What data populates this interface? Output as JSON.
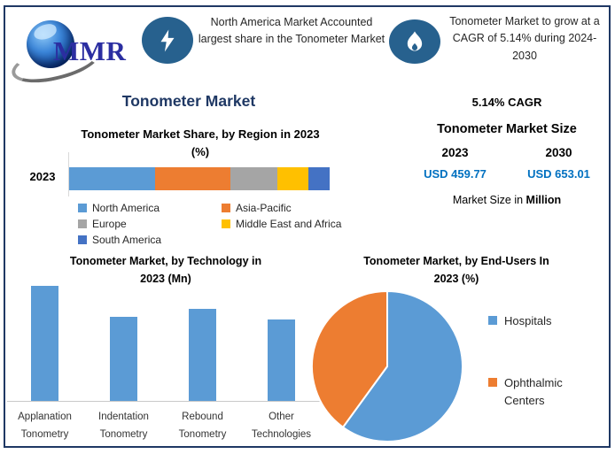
{
  "brand": {
    "logo_text": "MMR"
  },
  "header": {
    "highlight1": "North America Market Accounted largest share in the Tonometer Market",
    "highlight1_icon": "lightning-bolt",
    "highlight2": "Tonometer Market to grow at a CAGR of 5.14% during 2024-2030",
    "highlight2_icon": "flame"
  },
  "main_title": "Tonometer Market",
  "market_size_panel": {
    "cagr": "5.14% CAGR",
    "title": "Tonometer Market Size",
    "year_start": "2023",
    "year_end": "2030",
    "value_start": "USD 459.77",
    "value_end": "USD 653.01",
    "note_prefix": "Market Size in ",
    "note_bold": "Million"
  },
  "colors": {
    "border_navy": "#1F3864",
    "icon_circle_blue": "#27618E",
    "value_blue": "#0070C0",
    "logo_blue": "#2B2EA1"
  },
  "chart_data": [
    {
      "id": "region_share",
      "type": "bar",
      "subtype": "horizontal-stacked",
      "title": "Tonometer Market Share, by Region in 2023 (%)",
      "title_lines": [
        "Tonometer Market Share, by Region in 2023",
        "(%)"
      ],
      "categories": [
        "2023"
      ],
      "series": [
        {
          "name": "North America",
          "color": "#5B9BD5",
          "values": [
            33
          ]
        },
        {
          "name": "Asia-Pacific",
          "color": "#ED7D31",
          "values": [
            29
          ]
        },
        {
          "name": "Europe",
          "color": "#A5A5A5",
          "values": [
            18
          ]
        },
        {
          "name": "Middle East and Africa",
          "color": "#FFC000",
          "values": [
            12
          ]
        },
        {
          "name": "South America",
          "color": "#4472C4",
          "values": [
            8
          ]
        }
      ],
      "xlim": [
        0,
        100
      ],
      "legend_position": "bottom",
      "grid": false,
      "value_labels_shown": false
    },
    {
      "id": "technology",
      "type": "bar",
      "title": "Tonometer Market, by Technology in 2023 (Mn)",
      "title_lines": [
        "Tonometer Market, by Technology in",
        "2023 (Mn)"
      ],
      "categories": [
        "Applanation Tonometry",
        "Indentation Tonometry",
        "Rebound Tonometry",
        "Other Technologies"
      ],
      "category_lines": [
        [
          "Applanation",
          "Tonometry"
        ],
        [
          "Indentation",
          "Tonometry"
        ],
        [
          "Rebound",
          "Tonometry"
        ],
        [
          "Other",
          "Technologies"
        ]
      ],
      "values": [
        100,
        73,
        80,
        71
      ],
      "ylim": [
        0,
        104
      ],
      "bar_color": "#5B9BD5",
      "value_axis": "unlabeled; values are relative heights with tallest bar = 100",
      "grid": false
    },
    {
      "id": "end_users",
      "type": "pie",
      "title": "Tonometer Market, by End-Users In 2023 (%)",
      "title_lines": [
        "Tonometer Market, by End-Users In",
        "2023 (%)"
      ],
      "labels": [
        "Hospitals",
        "Ophthalmic Centers"
      ],
      "values": [
        60,
        40
      ],
      "colors": [
        "#5B9BD5",
        "#ED7D31"
      ],
      "legend_position": "right",
      "start_angle_deg": 0,
      "direction": "clockwise"
    }
  ]
}
